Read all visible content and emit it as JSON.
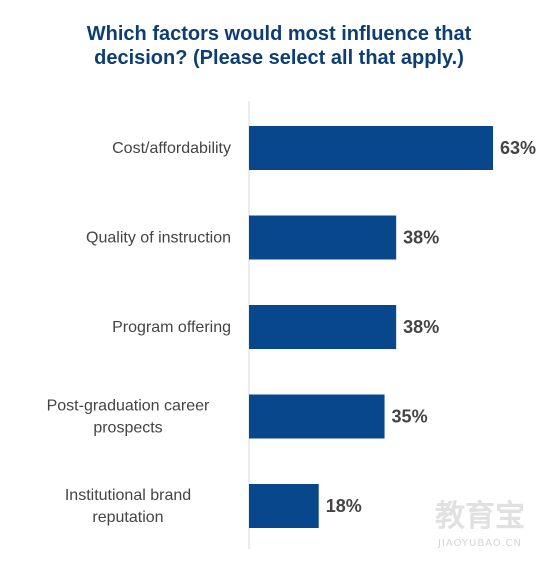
{
  "chart_data": {
    "type": "bar",
    "orientation": "horizontal",
    "title_lines": [
      "Which factors would most influence that",
      "decision? (Please select all that apply.)"
    ],
    "categories": [
      [
        "Cost/affordability"
      ],
      [
        "Quality of instruction"
      ],
      [
        "Program offering"
      ],
      [
        "Post-graduation career",
        "prospects"
      ],
      [
        "Institutional brand",
        "reputation"
      ]
    ],
    "values": [
      63,
      38,
      38,
      35,
      18
    ],
    "value_labels": [
      "63%",
      "38%",
      "38%",
      "35%",
      "18%"
    ],
    "unit": "%",
    "xlim": [
      0,
      63
    ],
    "bar_color": "#08478b",
    "grid": false,
    "legend": "none"
  },
  "watermark": {
    "main": "教育宝",
    "sub": "JIAOYUBAO.CN"
  }
}
